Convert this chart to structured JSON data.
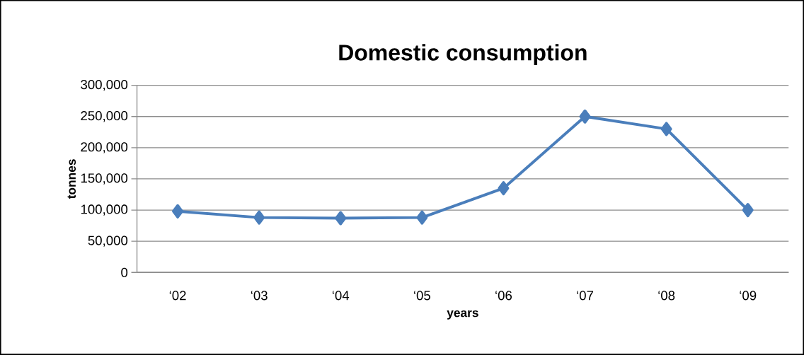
{
  "chart_data": {
    "type": "line",
    "title": "Domestic consumption",
    "xlabel": "years",
    "ylabel": "tonnes",
    "categories": [
      "‘02",
      "‘03",
      "‘04",
      "‘05",
      "‘06",
      "‘07",
      "‘08",
      "‘09"
    ],
    "series": [
      {
        "color": "#4a7ebb",
        "values": [
          98000,
          88000,
          87000,
          88000,
          135000,
          250000,
          230000,
          100000
        ]
      }
    ],
    "ylim": [
      0,
      300000
    ],
    "yticks": [
      {
        "value": 0,
        "label": "0"
      },
      {
        "value": 50000,
        "label": "50,000"
      },
      {
        "value": 100000,
        "label": "100,000"
      },
      {
        "value": 150000,
        "label": "150,000"
      },
      {
        "value": 200000,
        "label": "200,000"
      },
      {
        "value": 250000,
        "label": "250,000"
      },
      {
        "value": 300000,
        "label": "300,000"
      }
    ],
    "grid": "y",
    "marker": "diamond",
    "line_style": "solid"
  }
}
